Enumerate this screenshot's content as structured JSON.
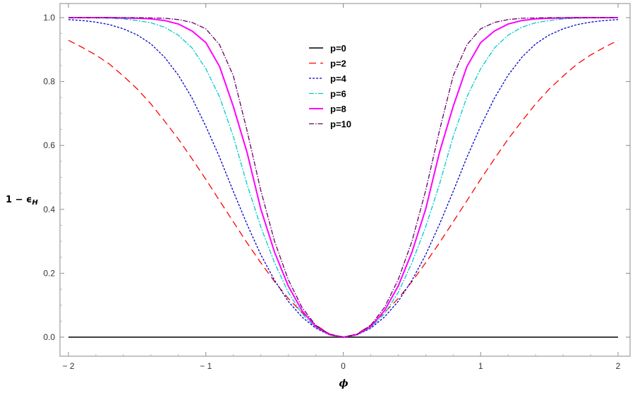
{
  "chart_data": {
    "type": "line",
    "xlabel": "ϕ",
    "ylabel": {
      "main": "1 − ϵ",
      "sub": "H"
    },
    "xlim": [
      -2,
      2
    ],
    "ylim": [
      0,
      1
    ],
    "xticks": [
      -2,
      -1,
      0,
      1,
      2
    ],
    "yticks": [
      0.0,
      0.2,
      0.4,
      0.6,
      0.8,
      1.0
    ],
    "xtick_labels": [
      "− 2",
      "− 1",
      "0",
      "1",
      "2"
    ],
    "ytick_labels": [
      "0.0",
      "0.2",
      "0.4",
      "0.6",
      "0.8",
      "1.0"
    ],
    "grid": false,
    "legend_position": "top-center",
    "x": [
      -2.0,
      -1.9,
      -1.8,
      -1.7,
      -1.6,
      -1.5,
      -1.4,
      -1.3,
      -1.2,
      -1.1,
      -1.0,
      -0.9,
      -0.8,
      -0.7,
      -0.6,
      -0.5,
      -0.4,
      -0.3,
      -0.2,
      -0.1,
      0.0,
      0.1,
      0.2,
      0.3,
      0.4,
      0.5,
      0.6,
      0.7,
      0.8,
      0.9,
      1.0,
      1.1,
      1.2,
      1.3,
      1.4,
      1.5,
      1.6,
      1.7,
      1.8,
      1.9,
      2.0
    ],
    "series": [
      {
        "name": "p=0",
        "color": "#000000",
        "dash": "solid",
        "width": 1.6,
        "values": [
          0,
          0,
          0,
          0,
          0,
          0,
          0,
          0,
          0,
          0,
          0,
          0,
          0,
          0,
          0,
          0,
          0,
          0,
          0,
          0,
          0,
          0,
          0,
          0,
          0,
          0,
          0,
          0,
          0,
          0,
          0,
          0,
          0,
          0,
          0,
          0,
          0,
          0,
          0,
          0,
          0
        ]
      },
      {
        "name": "p=2",
        "color": "#ff0000",
        "dash": "10,6",
        "width": 1.3,
        "values": [
          0.929,
          0.907,
          0.883,
          0.854,
          0.817,
          0.777,
          0.73,
          0.676,
          0.62,
          0.558,
          0.494,
          0.427,
          0.361,
          0.295,
          0.233,
          0.174,
          0.121,
          0.077,
          0.038,
          0.01,
          0.0,
          0.01,
          0.038,
          0.077,
          0.121,
          0.174,
          0.233,
          0.295,
          0.361,
          0.427,
          0.494,
          0.558,
          0.62,
          0.676,
          0.73,
          0.777,
          0.817,
          0.854,
          0.883,
          0.907,
          0.929
        ]
      },
      {
        "name": "p=4",
        "color": "#0000cc",
        "dash": "3,2",
        "width": 1.3,
        "values": [
          0.994,
          0.991,
          0.986,
          0.978,
          0.965,
          0.946,
          0.918,
          0.876,
          0.82,
          0.748,
          0.66,
          0.563,
          0.456,
          0.353,
          0.258,
          0.178,
          0.112,
          0.063,
          0.028,
          0.007,
          0.0,
          0.007,
          0.028,
          0.063,
          0.112,
          0.178,
          0.258,
          0.353,
          0.456,
          0.563,
          0.66,
          0.748,
          0.82,
          0.876,
          0.918,
          0.946,
          0.965,
          0.978,
          0.986,
          0.991,
          0.994
        ]
      },
      {
        "name": "p=6",
        "color": "#00cccc",
        "dash": "7,2,2,2",
        "width": 1.3,
        "values": [
          1.0,
          1.0,
          0.999,
          0.998,
          0.996,
          0.991,
          0.984,
          0.97,
          0.945,
          0.905,
          0.84,
          0.752,
          0.628,
          0.478,
          0.345,
          0.233,
          0.14,
          0.073,
          0.03,
          0.007,
          0.0,
          0.007,
          0.03,
          0.073,
          0.14,
          0.233,
          0.345,
          0.478,
          0.628,
          0.752,
          0.84,
          0.905,
          0.945,
          0.97,
          0.984,
          0.991,
          0.996,
          0.998,
          0.999,
          1.0,
          1.0
        ]
      },
      {
        "name": "p=8",
        "color": "#ff00ff",
        "dash": "solid",
        "width": 2.0,
        "values": [
          1.0,
          1.0,
          1.0,
          1.0,
          0.999,
          0.998,
          0.996,
          0.991,
          0.98,
          0.958,
          0.922,
          0.847,
          0.722,
          0.578,
          0.401,
          0.266,
          0.16,
          0.083,
          0.033,
          0.008,
          0.0,
          0.008,
          0.033,
          0.083,
          0.16,
          0.266,
          0.401,
          0.578,
          0.722,
          0.847,
          0.922,
          0.958,
          0.98,
          0.991,
          0.996,
          0.998,
          0.999,
          1.0,
          1.0,
          1.0,
          1.0
        ]
      },
      {
        "name": "p=10",
        "color": "#660066",
        "dash": "7,2,1.5,2",
        "width": 1.3,
        "values": [
          1.0,
          1.0,
          1.0,
          1.0,
          1.0,
          1.0,
          0.999,
          0.998,
          0.994,
          0.985,
          0.965,
          0.915,
          0.818,
          0.646,
          0.459,
          0.3,
          0.18,
          0.093,
          0.037,
          0.009,
          0.0,
          0.009,
          0.037,
          0.093,
          0.18,
          0.3,
          0.459,
          0.646,
          0.818,
          0.915,
          0.965,
          0.985,
          0.994,
          0.998,
          0.999,
          1.0,
          1.0,
          1.0,
          1.0,
          1.0,
          1.0
        ]
      }
    ]
  }
}
